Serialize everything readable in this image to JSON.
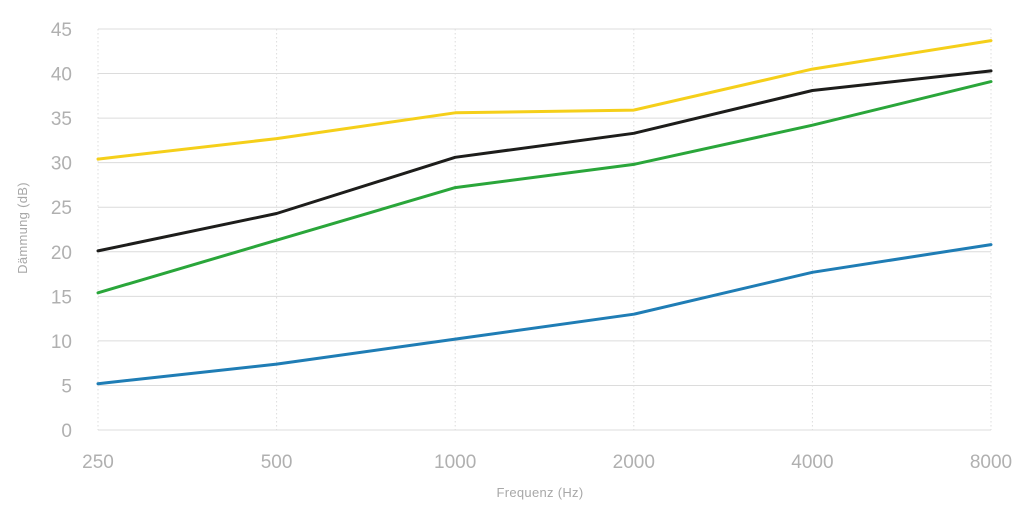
{
  "chart_data": {
    "type": "line",
    "title": "",
    "xlabel": "Frequenz (Hz)",
    "ylabel": "Dämmung (dB)",
    "x": [
      "250",
      "500",
      "1000",
      "2000",
      "4000",
      "8000"
    ],
    "xscale": "log2",
    "ylim": [
      0,
      45
    ],
    "yticks": [
      0,
      5,
      10,
      15,
      20,
      25,
      30,
      35,
      40,
      45
    ],
    "grid": true,
    "legend": "none",
    "series": [
      {
        "color": "#f5cf1a",
        "values": [
          30.4,
          32.7,
          35.6,
          35.9,
          40.5,
          43.7
        ]
      },
      {
        "color": "#1d1d1b",
        "values": [
          20.1,
          24.3,
          30.6,
          33.3,
          38.1,
          40.3
        ]
      },
      {
        "color": "#2aa63a",
        "values": [
          15.4,
          21.3,
          27.2,
          29.8,
          34.2,
          39.1
        ]
      },
      {
        "color": "#1f7db5",
        "values": [
          5.2,
          7.4,
          10.2,
          13.0,
          17.7,
          20.8
        ]
      }
    ]
  }
}
